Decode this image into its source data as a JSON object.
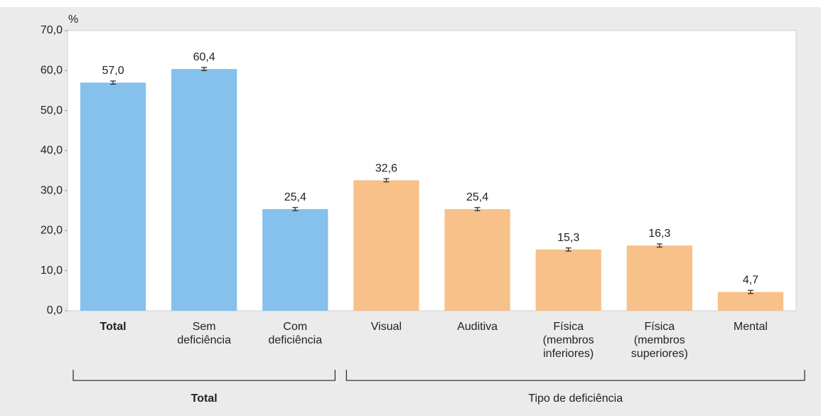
{
  "chart_data": {
    "type": "bar",
    "y_label": "%",
    "ylim": [
      0,
      70
    ],
    "yticks": [
      {
        "value": 0,
        "label": "0,0"
      },
      {
        "value": 10,
        "label": "10,0"
      },
      {
        "value": 20,
        "label": "20,0"
      },
      {
        "value": 30,
        "label": "30,0"
      },
      {
        "value": 40,
        "label": "40,0"
      },
      {
        "value": 50,
        "label": "50,0"
      },
      {
        "value": 60,
        "label": "60,0"
      },
      {
        "value": 70,
        "label": "70,0"
      }
    ],
    "groups": [
      {
        "label": "Total",
        "color": "#85c1ec",
        "categories": [
          "Total",
          "Sem deficiência",
          "Com deficiência"
        ],
        "values": [
          57.0,
          60.4,
          25.4
        ],
        "value_labels": [
          "57,0",
          "60,4",
          "25,4"
        ],
        "errors": [
          0.4,
          0.4,
          0.4
        ]
      },
      {
        "label": "Tipo de deficiência",
        "color": "#f7c189",
        "categories": [
          "Visual",
          "Auditiva",
          "Física (membros inferiores)",
          "Física (membros superiores)",
          "Mental"
        ],
        "values": [
          32.6,
          25.4,
          15.3,
          16.3,
          4.7
        ],
        "value_labels": [
          "32,6",
          "25,4",
          "15,3",
          "16,3",
          "4,7"
        ],
        "errors": [
          0.4,
          0.4,
          0.4,
          0.4,
          0.4
        ]
      }
    ]
  }
}
